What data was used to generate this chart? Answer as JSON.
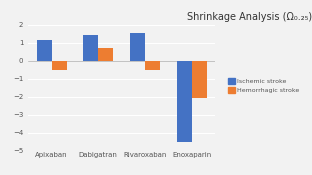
{
  "title": "Shrinkage Analysis (Ω₀.₂₅)",
  "categories": [
    "Apixaban",
    "Dabigatran",
    "Rivaroxaban",
    "Enoxaparin"
  ],
  "ischemic": [
    1.15,
    1.4,
    1.55,
    -4.55
  ],
  "hemorrhagic": [
    -0.55,
    0.72,
    -0.5,
    -2.1
  ],
  "bar_color_ischemic": "#4472C4",
  "bar_color_hemorrhagic": "#ED7D31",
  "ylim": [
    -5,
    2
  ],
  "yticks": [
    -5,
    -4,
    -3,
    -2,
    -1,
    0,
    1,
    2
  ],
  "legend_ischemic": "Ischemic stroke",
  "legend_hemorrhagic": "Hemorrhagic stroke",
  "bar_width": 0.32,
  "background_color": "#f2f2f2",
  "grid_color": "#ffffff",
  "plot_bg": "#f2f2f2"
}
